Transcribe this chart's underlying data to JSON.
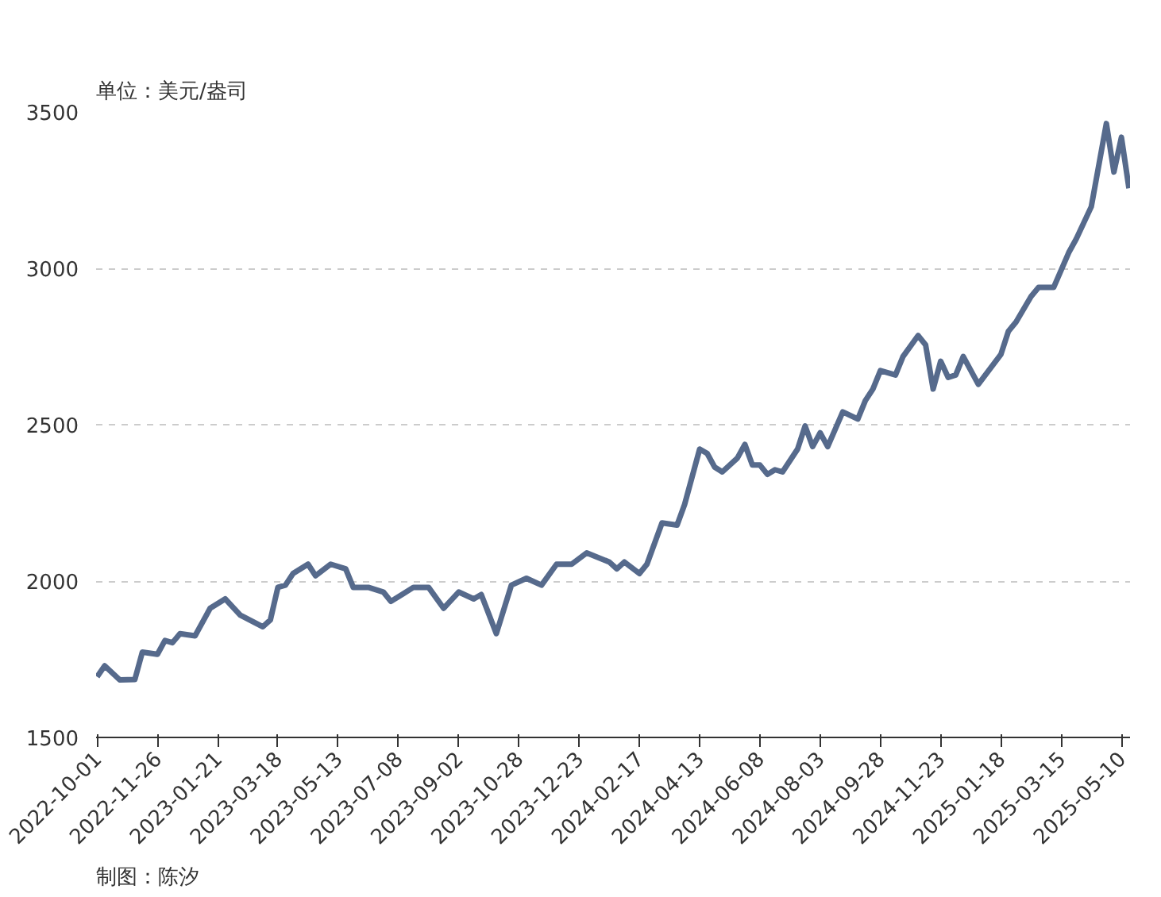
{
  "chart_data": {
    "type": "line",
    "ylabel": "单位：美元/盎司",
    "annotations": [
      "制图：陈汐"
    ],
    "x": [
      "2022-10-01",
      "2022-10-08",
      "2022-10-22",
      "2022-11-05",
      "2022-11-12",
      "2022-11-26",
      "2022-12-03",
      "2022-12-10",
      "2022-12-17",
      "2022-12-31",
      "2023-01-14",
      "2023-01-28",
      "2023-02-11",
      "2023-03-04",
      "2023-03-11",
      "2023-03-18",
      "2023-03-25",
      "2023-04-01",
      "2023-04-15",
      "2023-04-22",
      "2023-05-06",
      "2023-05-20",
      "2023-05-27",
      "2023-06-10",
      "2023-06-24",
      "2023-07-01",
      "2023-07-22",
      "2023-08-05",
      "2023-08-19",
      "2023-09-02",
      "2023-09-16",
      "2023-09-23",
      "2023-10-07",
      "2023-10-21",
      "2023-11-04",
      "2023-11-18",
      "2023-12-02",
      "2023-12-16",
      "2023-12-30",
      "2024-01-20",
      "2024-01-27",
      "2024-02-03",
      "2024-02-17",
      "2024-02-24",
      "2024-03-09",
      "2024-03-23",
      "2024-03-30",
      "2024-04-13",
      "2024-04-20",
      "2024-04-27",
      "2024-05-04",
      "2024-05-18",
      "2024-05-25",
      "2024-06-01",
      "2024-06-08",
      "2024-06-15",
      "2024-06-22",
      "2024-06-29",
      "2024-07-13",
      "2024-07-20",
      "2024-07-27",
      "2024-08-03",
      "2024-08-10",
      "2024-08-24",
      "2024-09-07",
      "2024-09-14",
      "2024-09-21",
      "2024-09-28",
      "2024-10-12",
      "2024-10-19",
      "2024-11-02",
      "2024-11-09",
      "2024-11-16",
      "2024-11-23",
      "2024-11-30",
      "2024-12-07",
      "2024-12-14",
      "2024-12-28",
      "2025-01-18",
      "2025-01-25",
      "2025-02-01",
      "2025-02-15",
      "2025-02-22",
      "2025-03-08",
      "2025-03-22",
      "2025-03-29",
      "2025-04-12",
      "2025-04-26",
      "2025-05-03",
      "2025-05-10",
      "2025-05-17"
    ],
    "series": [
      {
        "color": "#566a8c",
        "values": [
          1694,
          1729,
          1684,
          1685,
          1773,
          1766,
          1810,
          1803,
          1832,
          1825,
          1913,
          1943,
          1891,
          1854,
          1876,
          1980,
          1987,
          2024,
          2054,
          2017,
          2054,
          2039,
          1980,
          1980,
          1965,
          1935,
          1980,
          1980,
          1913,
          1965,
          1943,
          1957,
          1832,
          1987,
          2009,
          1987,
          2054,
          2054,
          2090,
          2061,
          2039,
          2061,
          2024,
          2054,
          2186,
          2179,
          2245,
          2422,
          2408,
          2364,
          2349,
          2393,
          2437,
          2371,
          2371,
          2341,
          2356,
          2349,
          2422,
          2496,
          2430,
          2474,
          2430,
          2541,
          2518,
          2577,
          2614,
          2673,
          2659,
          2718,
          2785,
          2755,
          2614,
          2703,
          2651,
          2659,
          2718,
          2629,
          2725,
          2799,
          2828,
          2910,
          2939,
          2939,
          3050,
          3094,
          3197,
          3463,
          3308,
          3419,
          3256
        ]
      }
    ],
    "xlim": [
      "2022-09-30",
      "2025-05-18"
    ],
    "xticks": [
      "2022-10-01",
      "2022-11-26",
      "2023-01-21",
      "2023-03-18",
      "2023-05-13",
      "2023-07-08",
      "2023-09-02",
      "2023-10-28",
      "2023-12-23",
      "2024-02-17",
      "2024-04-13",
      "2024-06-08",
      "2024-08-03",
      "2024-09-28",
      "2024-11-23",
      "2025-01-18",
      "2025-03-15",
      "2025-05-10"
    ],
    "ylim": [
      1500,
      3500
    ],
    "yticks": [
      1500,
      2000,
      2500,
      3000,
      3500
    ],
    "grid": "y",
    "marker": "none",
    "line_style": "solid"
  }
}
